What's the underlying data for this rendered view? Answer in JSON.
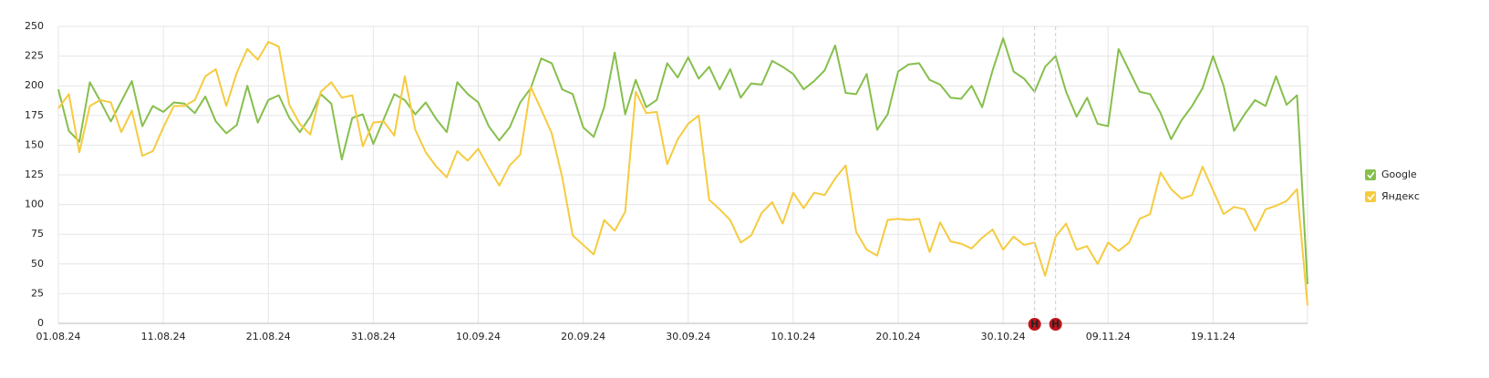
{
  "chart_data": {
    "type": "line",
    "categories": [
      "01.08.24",
      null,
      null,
      null,
      null,
      null,
      null,
      null,
      null,
      null,
      "11.08.24",
      null,
      null,
      null,
      null,
      null,
      null,
      null,
      null,
      null,
      "21.08.24",
      null,
      null,
      null,
      null,
      null,
      null,
      null,
      null,
      null,
      "31.08.24",
      null,
      null,
      null,
      null,
      null,
      null,
      null,
      null,
      null,
      "10.09.24",
      null,
      null,
      null,
      null,
      null,
      null,
      null,
      null,
      null,
      "20.09.24",
      null,
      null,
      null,
      null,
      null,
      null,
      null,
      null,
      null,
      "30.09.24",
      null,
      null,
      null,
      null,
      null,
      null,
      null,
      null,
      null,
      "10.10.24",
      null,
      null,
      null,
      null,
      null,
      null,
      null,
      null,
      null,
      "20.10.24",
      null,
      null,
      null,
      null,
      null,
      null,
      null,
      null,
      null,
      "30.10.24",
      null,
      null,
      null,
      null,
      null,
      null,
      null,
      null,
      null,
      "09.11.24",
      null,
      null,
      null,
      null,
      null,
      null,
      null,
      null,
      null,
      "19.11.24",
      null,
      null,
      null,
      null,
      null,
      null,
      null,
      null,
      null
    ],
    "series": [
      {
        "name": "Google",
        "color": "#86bf4c",
        "values": [
          197,
          162,
          153,
          203,
          187,
          170,
          187,
          204,
          166,
          183,
          178,
          186,
          185,
          177,
          191,
          170,
          160,
          167,
          200,
          169,
          188,
          192,
          173,
          161,
          174,
          193,
          185,
          138,
          173,
          176,
          151,
          172,
          193,
          188,
          176,
          186,
          172,
          161,
          203,
          193,
          186,
          166,
          154,
          165,
          186,
          198,
          223,
          219,
          197,
          193,
          165,
          157,
          182,
          228,
          176,
          205,
          182,
          188,
          219,
          207,
          224,
          206,
          216,
          197,
          214,
          190,
          202,
          201,
          221,
          216,
          210,
          197,
          204,
          213,
          234,
          194,
          193,
          210,
          163,
          176,
          212,
          218,
          219,
          205,
          201,
          190,
          189,
          200,
          182,
          213,
          240,
          212,
          206,
          195,
          216,
          225,
          195,
          174,
          190,
          168,
          166,
          231,
          213,
          195,
          193,
          177,
          155,
          171,
          183,
          198,
          225,
          200,
          162,
          176,
          188,
          183,
          208,
          184,
          192,
          33
        ]
      },
      {
        "name": "Яндекс",
        "color": "#f5cb3f",
        "values": [
          181,
          193,
          144,
          183,
          188,
          186,
          161,
          179,
          141,
          145,
          165,
          183,
          183,
          188,
          208,
          214,
          183,
          211,
          231,
          222,
          237,
          233,
          184,
          168,
          159,
          195,
          203,
          190,
          192,
          149,
          169,
          170,
          158,
          208,
          163,
          144,
          132,
          123,
          145,
          137,
          147,
          131,
          116,
          133,
          142,
          199,
          180,
          160,
          123,
          74,
          66,
          58,
          87,
          78,
          94,
          195,
          177,
          178,
          134,
          155,
          168,
          175,
          104,
          96,
          87,
          68,
          74,
          93,
          102,
          84,
          110,
          97,
          110,
          108,
          122,
          133,
          77,
          62,
          57,
          87,
          88,
          87,
          88,
          60,
          85,
          69,
          67,
          63,
          72,
          79,
          62,
          73,
          66,
          68,
          40,
          73,
          84,
          62,
          65,
          50,
          68,
          61,
          68,
          88,
          92,
          127,
          113,
          105,
          108,
          132,
          112,
          92,
          98,
          96,
          78,
          96,
          99,
          103,
          113,
          15
        ]
      }
    ],
    "ylim": [
      0,
      250
    ],
    "yticks": [
      0,
      25,
      50,
      75,
      100,
      125,
      150,
      175,
      200,
      225,
      250
    ],
    "grid": true,
    "weekend_label_color": "#a52020",
    "annotations": [
      {
        "index": 93,
        "label": "Н"
      },
      {
        "index": 95,
        "label": "Н"
      }
    ],
    "legend": "right"
  }
}
